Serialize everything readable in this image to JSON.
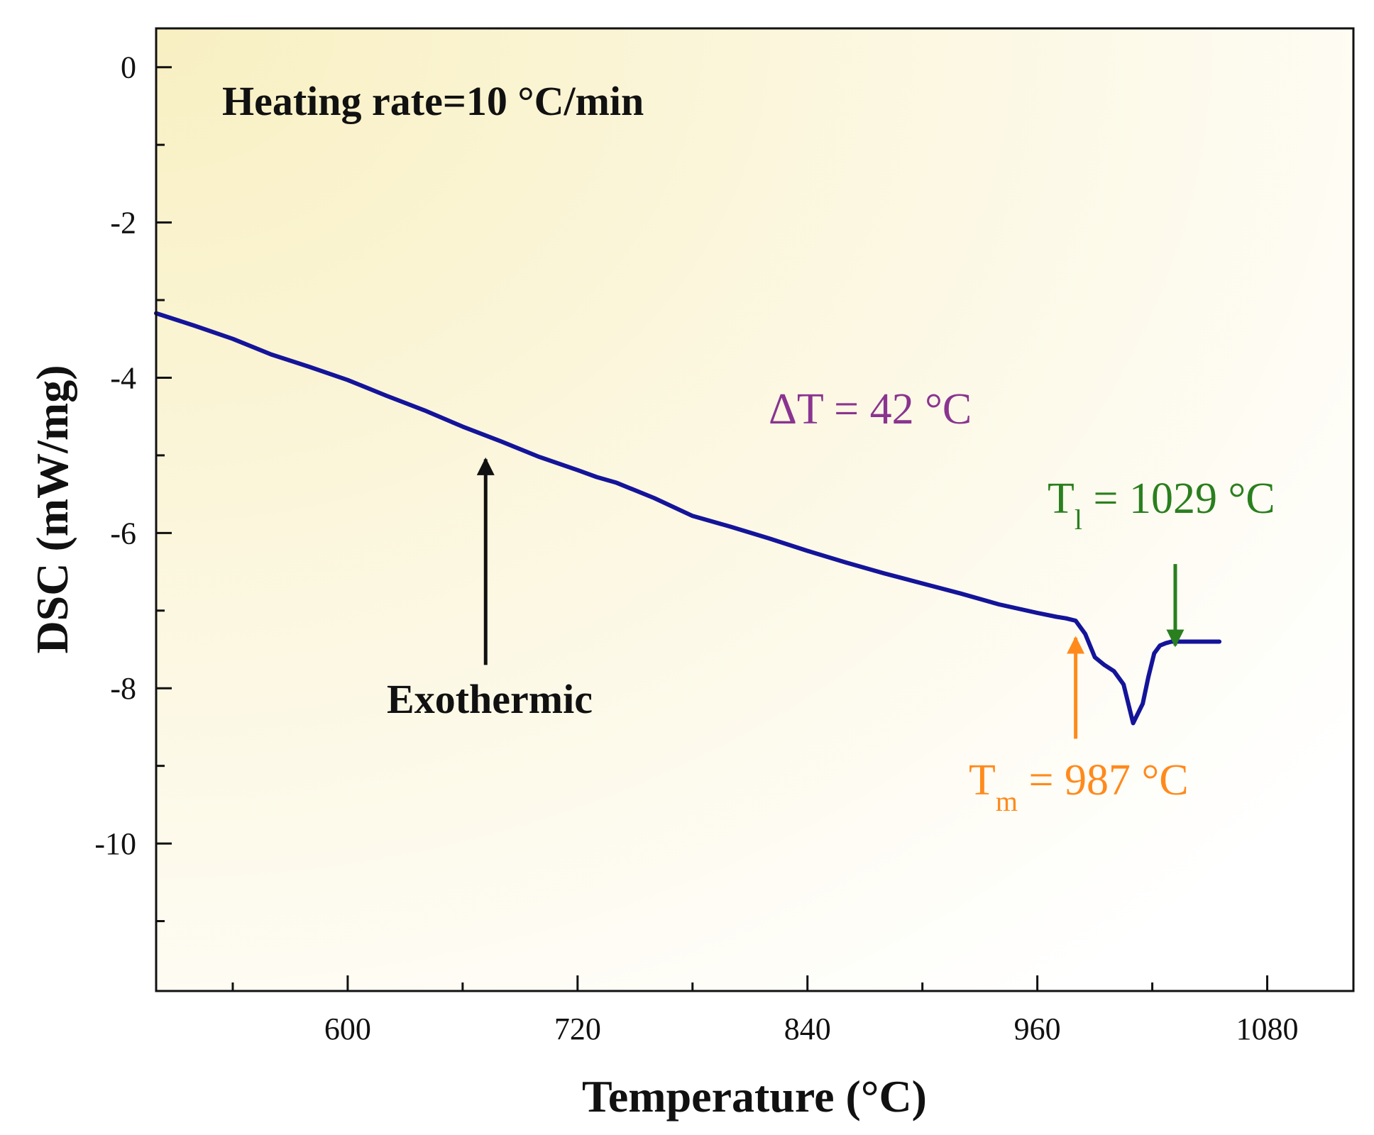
{
  "chart_data": {
    "type": "line",
    "title": "",
    "xlabel": "Temperature (°C)",
    "ylabel": "DSC (mW/mg)",
    "xlim": [
      500,
      1125
    ],
    "ylim": [
      -11.9,
      0.5
    ],
    "x_ticks": [
      {
        "value": 600,
        "label": "600"
      },
      {
        "value": 720,
        "label": "720"
      },
      {
        "value": 840,
        "label": "840"
      },
      {
        "value": 960,
        "label": "960"
      },
      {
        "value": 1080,
        "label": "1080"
      }
    ],
    "x_minor_ticks": [
      540,
      660,
      780,
      900,
      1020
    ],
    "y_ticks": [
      {
        "value": 0,
        "label": "0"
      },
      {
        "value": -2,
        "label": "-2"
      },
      {
        "value": -4,
        "label": "-4"
      },
      {
        "value": -6,
        "label": "-6"
      },
      {
        "value": -8,
        "label": "-8"
      },
      {
        "value": -10,
        "label": "-10"
      }
    ],
    "y_minor_ticks": [
      -1,
      -3,
      -5,
      -7,
      -9,
      -11
    ],
    "grid": false,
    "series": [
      {
        "name": "DSC",
        "color": "#14149a",
        "x": [
          500,
          520,
          540,
          560,
          580,
          600,
          620,
          640,
          660,
          680,
          700,
          720,
          730,
          740,
          760,
          780,
          800,
          820,
          840,
          860,
          880,
          900,
          920,
          940,
          960,
          970,
          975,
          980,
          985,
          990,
          995,
          1000,
          1005,
          1010,
          1015,
          1018,
          1021,
          1024,
          1027,
          1030,
          1035,
          1040,
          1045,
          1050,
          1055
        ],
        "y": [
          -3.17,
          -3.33,
          -3.5,
          -3.7,
          -3.86,
          -4.03,
          -4.23,
          -4.42,
          -4.63,
          -4.82,
          -5.02,
          -5.19,
          -5.28,
          -5.35,
          -5.55,
          -5.78,
          -5.92,
          -6.07,
          -6.23,
          -6.38,
          -6.52,
          -6.65,
          -6.78,
          -6.92,
          -7.03,
          -7.08,
          -7.1,
          -7.13,
          -7.3,
          -7.6,
          -7.7,
          -7.78,
          -7.95,
          -8.45,
          -8.2,
          -7.85,
          -7.55,
          -7.45,
          -7.42,
          -7.4,
          -7.4,
          -7.4,
          -7.4,
          -7.4,
          -7.4
        ]
      }
    ],
    "annotations": [
      {
        "id": "heating_rate",
        "text": "Heating rate=10 °C/min",
        "color": "#111111"
      },
      {
        "id": "delta_t",
        "text": "ΔT = 42 °C",
        "color": "#8a3490"
      },
      {
        "id": "t_l",
        "symbol": "T",
        "subscript": "l",
        "value_text": " = 1029 °C",
        "color": "#2a7f1e",
        "arrow_x": 1032,
        "arrow_y_from": -6.4,
        "arrow_y_to": -7.45
      },
      {
        "id": "t_m",
        "symbol": "T",
        "subscript": "m",
        "value_text": " = 987 °C",
        "color": "#ff8a1c",
        "arrow_x": 980,
        "arrow_y_from": -8.65,
        "arrow_y_to": -7.35
      },
      {
        "id": "exothermic",
        "text": "Exothermic",
        "color": "#111111",
        "arrow_x": 672,
        "arrow_y_from": -7.7,
        "arrow_y_to": -5.05
      }
    ],
    "background_gradient": [
      "#f8f0c2",
      "#ffffff"
    ]
  }
}
